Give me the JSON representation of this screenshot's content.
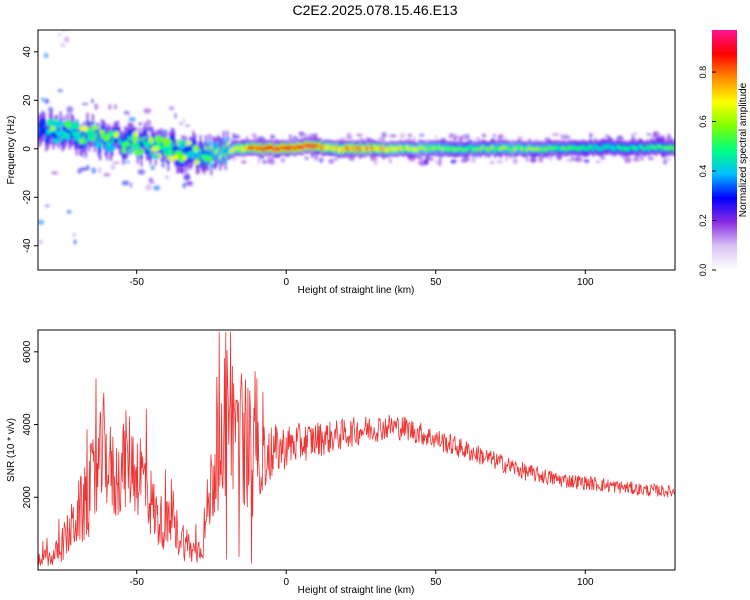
{
  "figure": {
    "title": "C2E2.2025.078.15.46.E13"
  },
  "chart_data": [
    {
      "type": "heatmap",
      "name": "spectrogram",
      "xlabel": "Height of straight line (km)",
      "ylabel": "Frequency (Hz)",
      "xlim": [
        -83,
        130
      ],
      "ylim": [
        -50,
        49
      ],
      "x_ticks": [
        -50,
        0,
        50,
        100
      ],
      "y_ticks": [
        -40,
        -20,
        0,
        20,
        40
      ],
      "colorbar": {
        "label": "Normalized spectral amplitude",
        "range": [
          0,
          0.97
        ],
        "ticks": [
          0.0,
          0.2,
          0.4,
          0.6,
          0.8
        ],
        "colors": [
          "#ffffff",
          "#d9c3f5",
          "#8a2be2",
          "#0000ff",
          "#00bfff",
          "#00ff7f",
          "#7fff00",
          "#ffff00",
          "#ff8c00",
          "#ff0000",
          "#ff1493"
        ]
      },
      "ridge": {
        "x": [
          -83,
          -75,
          -70,
          -65,
          -60,
          -55,
          -50,
          -45,
          -40,
          -35,
          -30,
          -25,
          -20,
          -15,
          -10,
          -5,
          0,
          5,
          10,
          15,
          20,
          30,
          40,
          50,
          60,
          75,
          90,
          100,
          110,
          120,
          130
        ],
        "y": [
          8,
          7,
          6,
          5,
          4,
          3,
          2,
          1,
          0,
          -1,
          -2,
          -3,
          -1,
          0,
          0,
          0,
          0,
          1,
          1,
          0,
          0,
          0,
          0,
          0,
          0,
          0,
          0,
          0.5,
          0.5,
          0.5,
          0.5
        ],
        "amplitude": [
          0.3,
          0.45,
          0.5,
          0.55,
          0.5,
          0.5,
          0.5,
          0.45,
          0.5,
          0.45,
          0.5,
          0.6,
          0.6,
          0.75,
          0.85,
          0.95,
          0.9,
          0.95,
          0.85,
          0.7,
          0.8,
          0.75,
          0.65,
          0.6,
          0.55,
          0.6,
          0.55,
          0.5,
          0.5,
          0.5,
          0.55
        ]
      }
    },
    {
      "type": "line",
      "name": "snr",
      "xlabel": "Height of straight line (km)",
      "ylabel": "SNR (10 * v/v)",
      "xlim": [
        -83,
        130
      ],
      "ylim": [
        0,
        6600
      ],
      "x_ticks": [
        -50,
        0,
        50,
        100
      ],
      "y_ticks": [
        2000,
        4000,
        6000
      ],
      "color": "#ee3333",
      "envelope": {
        "x": [
          -83,
          -78,
          -75,
          -72,
          -70,
          -67,
          -65,
          -63,
          -61,
          -59,
          -57,
          -55,
          -53,
          -51,
          -49,
          -47,
          -45,
          -43,
          -41,
          -39,
          -37,
          -35,
          -33,
          -31,
          -29,
          -27,
          -25,
          -23,
          -21,
          -19,
          -17,
          -15,
          -13,
          -11,
          -9,
          -7,
          -5,
          -3,
          0,
          5,
          10,
          15,
          20,
          25,
          30,
          35,
          40,
          45,
          50,
          55,
          60,
          65,
          70,
          75,
          80,
          85,
          90,
          95,
          100,
          105,
          110,
          115,
          120,
          125,
          130
        ],
        "y": [
          300,
          350,
          700,
          1100,
          1500,
          1800,
          2300,
          2600,
          3400,
          2800,
          2400,
          2900,
          3100,
          2800,
          2700,
          2400,
          1800,
          1400,
          1300,
          1200,
          1100,
          900,
          700,
          500,
          600,
          1200,
          2400,
          3000,
          3400,
          3700,
          4200,
          3800,
          3400,
          3100,
          3000,
          3100,
          3200,
          3300,
          3400,
          3500,
          3600,
          3650,
          3750,
          3850,
          3900,
          3950,
          3900,
          3750,
          3600,
          3450,
          3300,
          3150,
          3000,
          2850,
          2700,
          2600,
          2500,
          2450,
          2400,
          2350,
          2300,
          2250,
          2200,
          2180,
          2150
        ],
        "noise_amplitude": [
          250,
          250,
          500,
          700,
          900,
          1100,
          1300,
          1400,
          1500,
          1300,
          1200,
          1300,
          1400,
          1300,
          1300,
          1200,
          1000,
          800,
          750,
          700,
          700,
          600,
          500,
          400,
          400,
          900,
          1200,
          1400,
          1600,
          1800,
          1900,
          1900,
          1800,
          1700,
          1000,
          900,
          800,
          700,
          600,
          550,
          500,
          450,
          420,
          400,
          380,
          360,
          340,
          320,
          300,
          300,
          280,
          270,
          260,
          250,
          240,
          230,
          220,
          210,
          200,
          200,
          190,
          180,
          180,
          170,
          170
        ]
      }
    }
  ]
}
